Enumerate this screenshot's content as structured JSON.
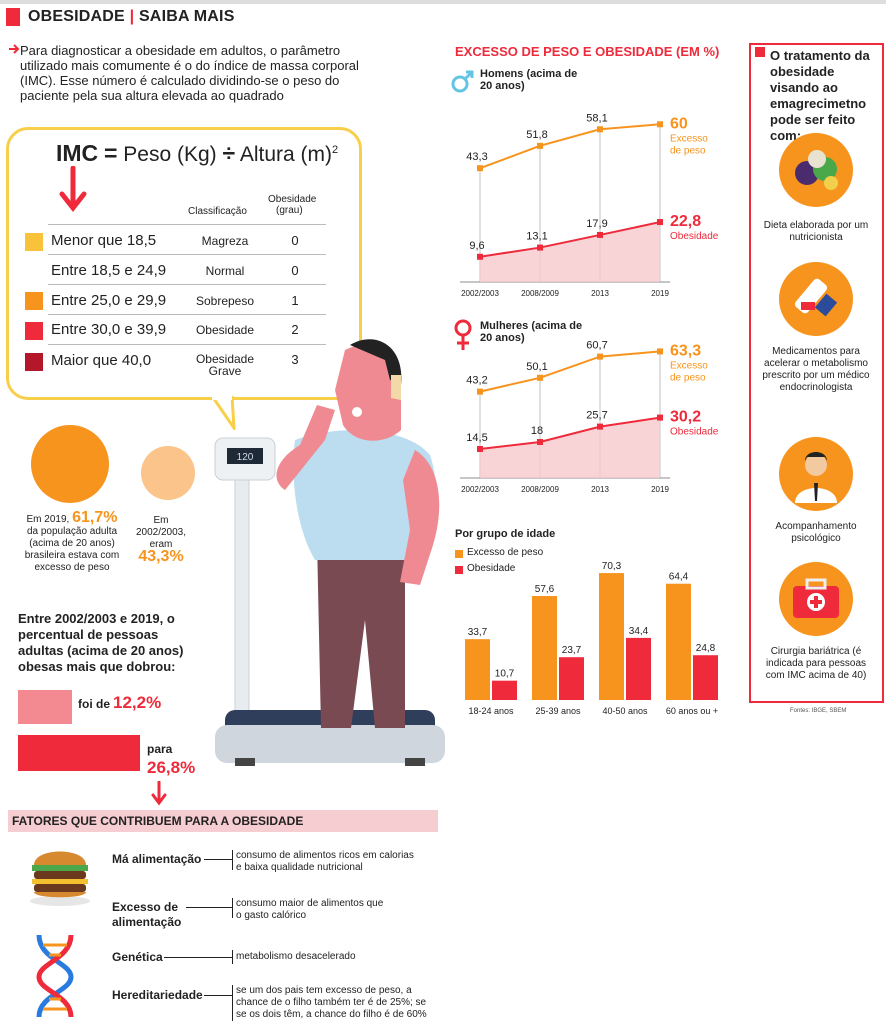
{
  "header": {
    "left": "OBESIDADE",
    "sep": "|",
    "right": "SAIBA MAIS"
  },
  "intro": "Para diagnosticar a obesidade em adultos, o parâmetro utilizado mais comumente é o do índice de massa corporal (IMC). Esse número é calculado dividindo-se o peso do paciente pela sua altura elevada ao quadrado",
  "formula": {
    "imc": "IMC",
    "eq": "=",
    "peso": "Peso (Kg)",
    "div": "÷",
    "altura": "Altura (m)",
    "exp": "2"
  },
  "scale_display": "120",
  "imc_table": {
    "head_class": "Classificação",
    "head_grade_1": "Obesidade",
    "head_grade_2": "(grau)",
    "rows": [
      {
        "range": "Menor que 18,5",
        "class": "Magreza",
        "grade": "0",
        "color": "#f8c23a"
      },
      {
        "range": "Entre 18,5 e 24,9",
        "class": "Normal",
        "grade": "0",
        "color": ""
      },
      {
        "range": "Entre 25,0 e 29,9",
        "class": "Sobrepeso",
        "grade": "1",
        "color": "#f7941d"
      },
      {
        "range": "Entre 30,0 e 39,9",
        "class": "Obesidade",
        "grade": "2",
        "color": "#ee2a3b"
      },
      {
        "range": "Maior que 40,0",
        "class": "Obesidade",
        "class2": "Grave",
        "grade": "3",
        "color": "#b5172a"
      }
    ]
  },
  "stat_2019": {
    "pre": "Em 2019,",
    "value": "61,7%",
    "text": "da população adulta (acima de 20 anos) brasileira estava com excesso de peso"
  },
  "stat_2003": {
    "pre": "Em 2002/2003, eram",
    "value": "43,3%"
  },
  "obese_growth": {
    "text": "Entre 2002/2003 e 2019, o percentual de pessoas adultas (acima de 20 anos) obesas mais que dobrou:",
    "from_label": "foi de",
    "from_value": "12,2%",
    "to_label": "para",
    "to_value": "26,8%"
  },
  "factors": {
    "title": "FATORES QUE CONTRIBUEM PARA A OBESIDADE",
    "items": [
      {
        "name": "Má alimentação",
        "desc": "consumo de alimentos ricos em calorias e baixa qualidade nutricional"
      },
      {
        "name": "Excesso de alimentação",
        "desc": "consumo maior de alimentos que o gasto calórico"
      },
      {
        "name": "Genética",
        "desc": "metabolismo desacelerado"
      },
      {
        "name": "Hereditariedade",
        "desc": "se um dos pais tem excesso de peso, a chance de o filho também ter é de 25%; se se os dois têm, a chance do filho é de 60%"
      }
    ]
  },
  "treatment": {
    "title": "O tratamento da obesidade visando ao emagrecimetno pode ser feito com:",
    "items": [
      {
        "caption": "Dieta elaborada por um nutricionista",
        "icon": "food-icon"
      },
      {
        "caption": "Medicamentos para acelerar o metabolismo prescrito por um médico endocrinologista",
        "icon": "medicine-icon"
      },
      {
        "caption": "Acompanhamento psicológico",
        "icon": "doctor-icon"
      },
      {
        "caption": "Cirurgia bariátrica (é indicada para pessoas com IMC acima de 40)",
        "icon": "first-aid-kit-icon"
      }
    ]
  },
  "sources": "Fontes: IBGE, SBEM",
  "colors": {
    "orange": "#f7941d",
    "red": "#ee2a3b",
    "yellow": "#f8cf4a",
    "pink": "#f6cdd0"
  },
  "chart_data": [
    {
      "type": "line",
      "title": "EXCESSO DE PESO E OBESIDADE (EM %)",
      "subtitle": "Homens (acima de 20 anos)",
      "x": [
        "2002/2003",
        "2008/2009",
        "2013",
        "2019"
      ],
      "series": [
        {
          "name": "Excesso de peso",
          "values": [
            43.3,
            51.8,
            58.1,
            60
          ],
          "labels": [
            "43,3",
            "51,8",
            "58,1",
            "60"
          ],
          "color": "#f7941d"
        },
        {
          "name": "Obesidade",
          "values": [
            9.6,
            13.1,
            17.9,
            22.8
          ],
          "labels": [
            "9,6",
            "13,1",
            "17,9",
            "22,8"
          ],
          "color": "#ee2a3b"
        }
      ],
      "ylim": [
        0,
        70
      ]
    },
    {
      "type": "line",
      "subtitle": "Mulheres (acima de 20 anos)",
      "x": [
        "2002/2003",
        "2008/2009",
        "2013",
        "2019"
      ],
      "series": [
        {
          "name": "Excesso de peso",
          "values": [
            43.2,
            50.1,
            60.7,
            63.3
          ],
          "labels": [
            "43,2",
            "50,1",
            "60,7",
            "63,3"
          ],
          "color": "#f7941d"
        },
        {
          "name": "Obesidade",
          "values": [
            14.5,
            18,
            25.7,
            30.2
          ],
          "labels": [
            "14,5",
            "18",
            "25,7",
            "30,2"
          ],
          "color": "#ee2a3b"
        }
      ],
      "ylim": [
        0,
        70
      ]
    },
    {
      "type": "bar",
      "title": "Por grupo de idade",
      "categories": [
        "18-24 anos",
        "25-39 anos",
        "40-50 anos",
        "60 anos ou +"
      ],
      "series": [
        {
          "name": "Excesso de peso",
          "values": [
            33.7,
            57.6,
            70.3,
            64.4
          ],
          "labels": [
            "33,7",
            "57,6",
            "70,3",
            "64,4"
          ],
          "color": "#f7941d"
        },
        {
          "name": "Obesidade",
          "values": [
            10.7,
            23.7,
            34.4,
            24.8
          ],
          "labels": [
            "10,7",
            "23,7",
            "34,4",
            "24,8"
          ],
          "color": "#ee2a3b"
        }
      ],
      "ylim": [
        0,
        72
      ]
    }
  ]
}
